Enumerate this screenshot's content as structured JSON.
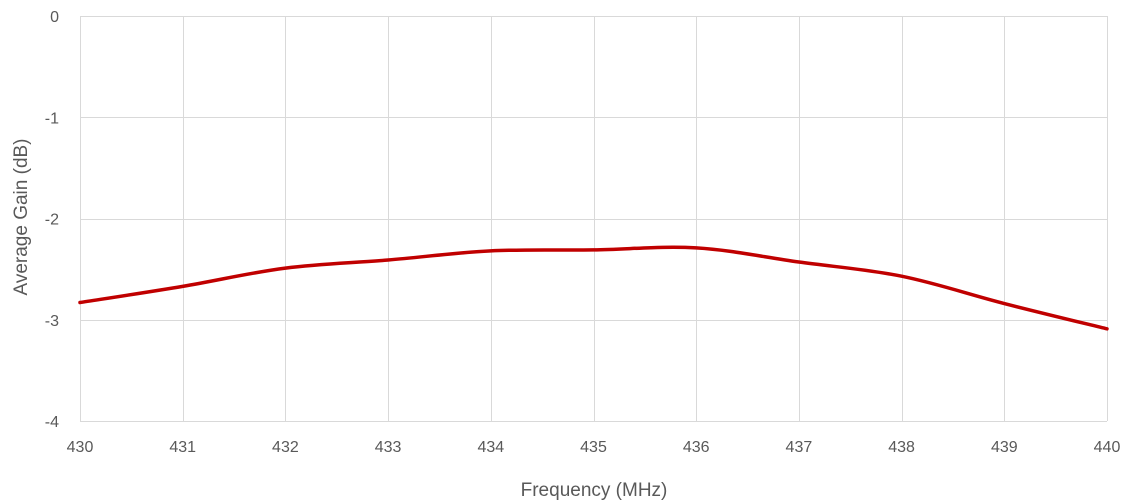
{
  "chart_data": {
    "type": "line",
    "title": "",
    "xlabel": "Frequency (MHz)",
    "ylabel": "Average Gain (dB)",
    "xlim": [
      430,
      440
    ],
    "ylim": [
      -4,
      0
    ],
    "x_ticks": [
      "430",
      "431",
      "432",
      "433",
      "434",
      "435",
      "436",
      "437",
      "438",
      "439",
      "440"
    ],
    "y_ticks": [
      "0",
      "-1",
      "-2",
      "-3",
      "-4"
    ],
    "grid": true,
    "legend": "none",
    "series": [
      {
        "color": "#c00000",
        "x": [
          430,
          431,
          432,
          433,
          434,
          435,
          436,
          437,
          438,
          439,
          440
        ],
        "y": [
          -2.83,
          -2.67,
          -2.49,
          -2.41,
          -2.32,
          -2.31,
          -2.29,
          -2.43,
          -2.57,
          -2.84,
          -3.09
        ]
      }
    ]
  }
}
